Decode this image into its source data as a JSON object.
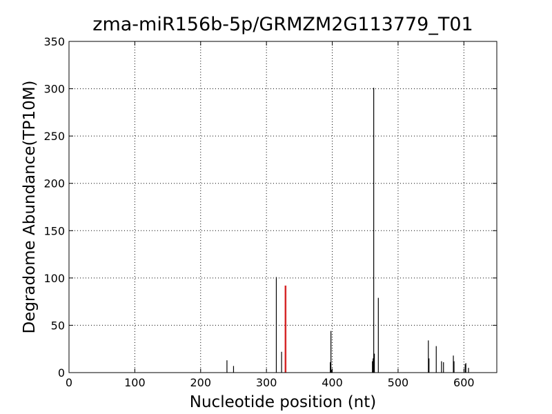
{
  "chart_data": {
    "type": "bar",
    "title": "zma-miR156b-5p/GRMZM2G113779_T01",
    "x_label": "Nucleotide position (nt)",
    "y_label": "Degradome Abundance(TP10M)",
    "xlim": [
      0,
      650
    ],
    "ylim": [
      0,
      350
    ],
    "xticks": [
      0,
      100,
      200,
      300,
      400,
      500,
      600
    ],
    "yticks": [
      0,
      50,
      100,
      150,
      200,
      250,
      300,
      350
    ],
    "grid": true,
    "series": [
      {
        "color": "#000000",
        "x": [
          240,
          250,
          315,
          323,
          397,
          398,
          399,
          461,
          462,
          463,
          464,
          470,
          546,
          547,
          558,
          566,
          569,
          584,
          585,
          602,
          603,
          607
        ],
        "values": [
          13,
          7,
          101,
          22,
          11,
          44,
          3,
          12,
          15,
          301,
          20,
          79,
          34,
          15,
          28,
          12,
          11,
          18,
          12,
          9,
          10,
          5
        ]
      },
      {
        "color": "#d62728",
        "x": [
          329
        ],
        "values": [
          92
        ]
      }
    ]
  }
}
